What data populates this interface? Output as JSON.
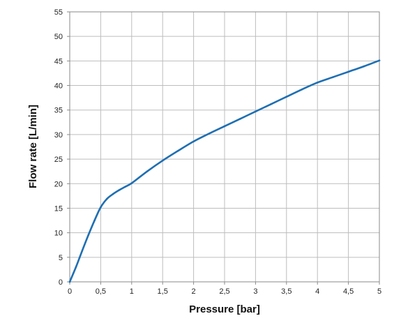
{
  "chart_data": {
    "type": "line",
    "title": "",
    "xlabel": "Pressure [bar]",
    "ylabel": "Flow rate [L/min]",
    "xlim": [
      0,
      5
    ],
    "ylim": [
      0,
      55
    ],
    "x_ticks": [
      "0",
      "0,5",
      "1",
      "1,5",
      "2",
      "2,5",
      "3",
      "3,5",
      "4",
      "4,5",
      "5"
    ],
    "y_ticks": [
      "0",
      "5",
      "10",
      "15",
      "20",
      "25",
      "30",
      "35",
      "40",
      "45",
      "50",
      "55"
    ],
    "grid": true,
    "legend": "none",
    "series": [
      {
        "color": "#1f6fb2",
        "x": [
          0,
          0.1,
          0.2,
          0.3,
          0.4,
          0.5,
          0.6,
          0.7,
          0.8,
          0.9,
          1.0,
          1.25,
          1.5,
          1.75,
          2.0,
          2.25,
          2.5,
          2.75,
          3.0,
          3.25,
          3.5,
          3.75,
          4.0,
          4.25,
          4.5,
          4.75,
          5.0
        ],
        "y": [
          0,
          3,
          6.3,
          9.5,
          12.5,
          15.2,
          16.9,
          17.9,
          18.7,
          19.4,
          20.1,
          22.5,
          24.7,
          26.7,
          28.6,
          30.2,
          31.7,
          33.2,
          34.7,
          36.2,
          37.7,
          39.2,
          40.6,
          41.7,
          42.8,
          43.9,
          45.1
        ]
      }
    ]
  },
  "colors": {
    "line": "#1f6fb2",
    "grid": "#bdbdbd",
    "axis": "#8a8a8a"
  }
}
